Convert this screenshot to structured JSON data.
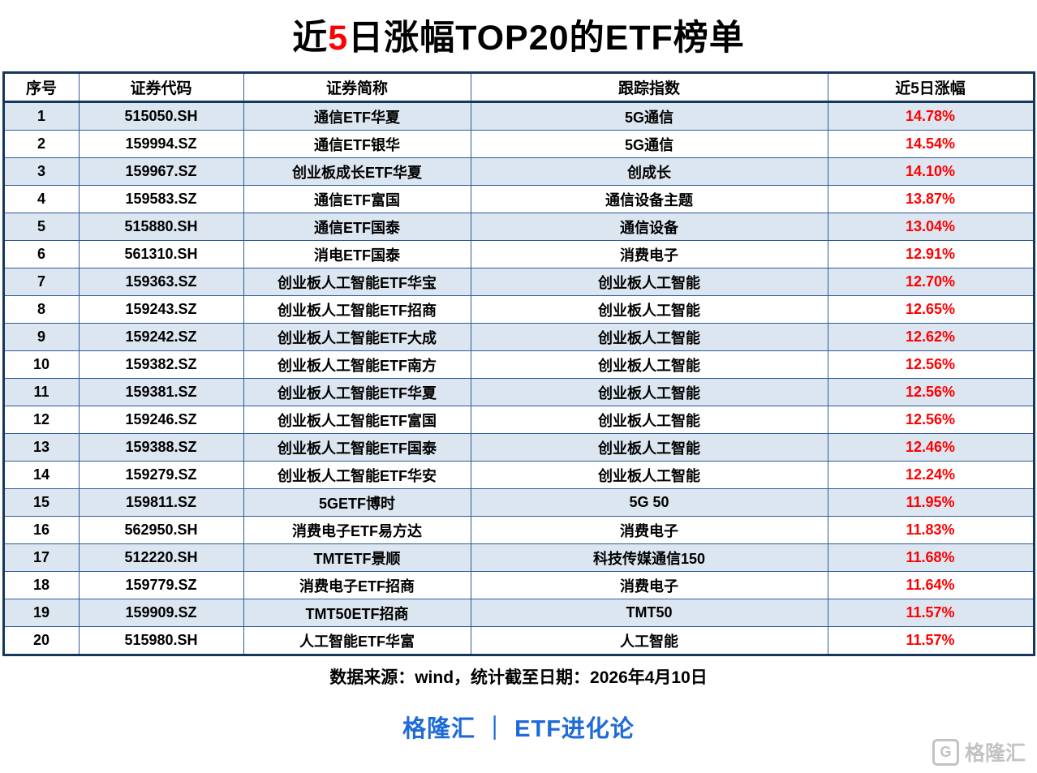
{
  "title": {
    "prefix": "近",
    "highlight": "5",
    "suffix": "日涨幅TOP20的ETF榜单"
  },
  "chart_data": {
    "type": "table",
    "title": "近5日涨幅TOP20的ETF榜单",
    "columns": [
      "序号",
      "证券代码",
      "证券简称",
      "跟踪指数",
      "近5日涨幅"
    ],
    "column_keys": [
      "rank",
      "code",
      "name",
      "index",
      "change"
    ],
    "rows": [
      [
        "1",
        "515050.SH",
        "通信ETF华夏",
        "5G通信",
        "14.78%"
      ],
      [
        "2",
        "159994.SZ",
        "通信ETF银华",
        "5G通信",
        "14.54%"
      ],
      [
        "3",
        "159967.SZ",
        "创业板成长ETF华夏",
        "创成长",
        "14.10%"
      ],
      [
        "4",
        "159583.SZ",
        "通信ETF富国",
        "通信设备主题",
        "13.87%"
      ],
      [
        "5",
        "515880.SH",
        "通信ETF国泰",
        "通信设备",
        "13.04%"
      ],
      [
        "6",
        "561310.SH",
        "消电ETF国泰",
        "消费电子",
        "12.91%"
      ],
      [
        "7",
        "159363.SZ",
        "创业板人工智能ETF华宝",
        "创业板人工智能",
        "12.70%"
      ],
      [
        "8",
        "159243.SZ",
        "创业板人工智能ETF招商",
        "创业板人工智能",
        "12.65%"
      ],
      [
        "9",
        "159242.SZ",
        "创业板人工智能ETF大成",
        "创业板人工智能",
        "12.62%"
      ],
      [
        "10",
        "159382.SZ",
        "创业板人工智能ETF南方",
        "创业板人工智能",
        "12.56%"
      ],
      [
        "11",
        "159381.SZ",
        "创业板人工智能ETF华夏",
        "创业板人工智能",
        "12.56%"
      ],
      [
        "12",
        "159246.SZ",
        "创业板人工智能ETF富国",
        "创业板人工智能",
        "12.56%"
      ],
      [
        "13",
        "159388.SZ",
        "创业板人工智能ETF国泰",
        "创业板人工智能",
        "12.46%"
      ],
      [
        "14",
        "159279.SZ",
        "创业板人工智能ETF华安",
        "创业板人工智能",
        "12.24%"
      ],
      [
        "15",
        "159811.SZ",
        "5GETF博时",
        "5G 50",
        "11.95%"
      ],
      [
        "16",
        "562950.SH",
        "消费电子ETF易方达",
        "消费电子",
        "11.83%"
      ],
      [
        "17",
        "512220.SH",
        "TMTETF景顺",
        "科技传媒通信150",
        "11.68%"
      ],
      [
        "18",
        "159779.SZ",
        "消费电子ETF招商",
        "消费电子",
        "11.64%"
      ],
      [
        "19",
        "159909.SZ",
        "TMT50ETF招商",
        "TMT50",
        "11.57%"
      ],
      [
        "20",
        "515980.SH",
        "人工智能ETF华富",
        "人工智能",
        "11.57%"
      ]
    ]
  },
  "footer": {
    "source": "数据来源：wind，统计截至日期：2026年4月10日",
    "brand": "格隆汇 ｜ ETF进化论",
    "watermark_text": "格隆汇",
    "watermark_logo_letter": "G"
  },
  "colors": {
    "highlight_red": "#ff0000",
    "row_alt_blue": "#dce6f1",
    "table_border": "#17365d",
    "grid_line": "#2e5a9c",
    "brand_blue": "#1d6ad8",
    "watermark_gray": "#c3c3c3"
  }
}
